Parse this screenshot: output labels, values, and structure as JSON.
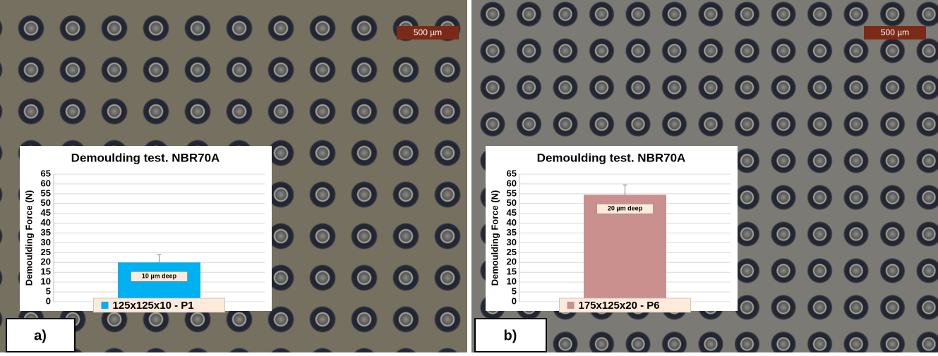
{
  "panels": [
    {
      "label": "a)",
      "scale_bar": "500 µm"
    },
    {
      "label": "b)",
      "scale_bar": "500 µm"
    }
  ],
  "chart_data": [
    {
      "type": "bar",
      "title": "Demoulding test. NBR70A",
      "y_label": "Demoulding Force (N)",
      "series": [
        {
          "name": "125x125x10 - P1",
          "color": "#00b0f0",
          "values": [
            20
          ],
          "errors": [
            4
          ]
        }
      ],
      "annotations": [
        "10 µm deep"
      ],
      "ylim": [
        0,
        65
      ],
      "yticks": [
        0,
        5,
        10,
        15,
        20,
        25,
        30,
        35,
        40,
        45,
        50,
        55,
        60,
        65
      ],
      "grid": true
    },
    {
      "type": "bar",
      "title": "Demoulding test. NBR70A",
      "y_label": "Demoulding Force (N)",
      "series": [
        {
          "name": "175x125x20 - P6",
          "color": "#c9908e",
          "values": [
            54.5
          ],
          "errors": [
            5
          ]
        }
      ],
      "annotations": [
        "20 µm deep"
      ],
      "ylim": [
        0,
        65
      ],
      "yticks": [
        0,
        5,
        10,
        15,
        20,
        25,
        30,
        35,
        40,
        45,
        50,
        55,
        60,
        65
      ],
      "grid": true
    }
  ]
}
